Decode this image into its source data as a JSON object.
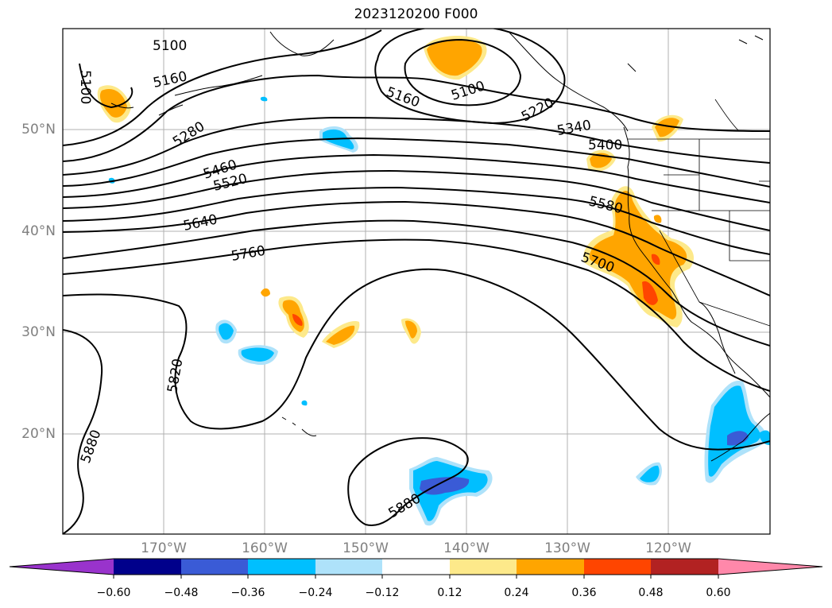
{
  "title": "2023120200 F000",
  "map": {
    "lon_ticks": [
      "170°W",
      "160°W",
      "150°W",
      "140°W",
      "130°W",
      "120°W"
    ],
    "lat_ticks": [
      "50°N",
      "40°N",
      "30°N",
      "20°N"
    ],
    "contour_labels": [
      "5100",
      "5100",
      "5160",
      "5100",
      "5160",
      "5220",
      "5280",
      "5340",
      "5400",
      "5460",
      "5520",
      "5580",
      "5640",
      "5700",
      "5760",
      "5820",
      "5880",
      "5880"
    ]
  },
  "colorbar": {
    "tick_labels": [
      "−0.60",
      "−0.48",
      "−0.36",
      "−0.24",
      "−0.12",
      "0.12",
      "0.24",
      "0.36",
      "0.48",
      "0.60"
    ],
    "colors": [
      "#9933cc",
      "#00008b",
      "#3a5bd6",
      "#00bfff",
      "#aee2fa",
      "#ffffff",
      "#fde98a",
      "#ffa500",
      "#ff4500",
      "#b22222",
      "#ff88aa"
    ]
  }
}
